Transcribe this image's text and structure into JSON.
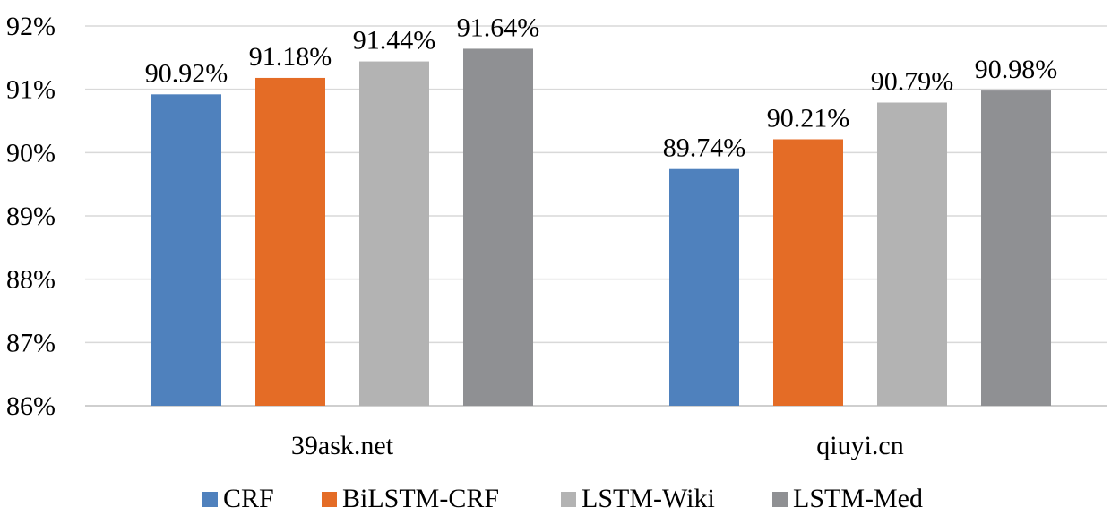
{
  "chart_data": {
    "type": "bar",
    "title": "",
    "xlabel": "",
    "ylabel": "",
    "categories": [
      "39ask.net",
      "qiuyi.cn"
    ],
    "series": [
      {
        "name": "CRF",
        "values": [
          90.92,
          89.74
        ],
        "labels": [
          "90.92%",
          "89.74%"
        ]
      },
      {
        "name": "BiLSTM-CRF",
        "values": [
          91.18,
          90.21
        ],
        "labels": [
          "91.18%",
          "90.21%"
        ]
      },
      {
        "name": "LSTM-Wiki",
        "values": [
          91.44,
          90.79
        ],
        "labels": [
          "91.44%",
          "90.79%"
        ]
      },
      {
        "name": "LSTM-Med",
        "values": [
          91.64,
          90.98
        ],
        "labels": [
          "91.64%",
          "90.98%"
        ]
      }
    ],
    "ylim": [
      86,
      92
    ],
    "yticks": [
      86,
      87,
      88,
      89,
      90,
      91,
      92
    ],
    "ytick_labels": [
      "86%",
      "87%",
      "88%",
      "89%",
      "90%",
      "91%",
      "92%"
    ],
    "grid": true,
    "legend_position": "bottom"
  },
  "colors": {
    "CRF": "#4f81bd",
    "BiLSTM-CRF": "#e46c26",
    "LSTM-Wiki": "#b3b3b3",
    "LSTM-Med": "#8f9093",
    "grid": "#d9d9d9"
  }
}
